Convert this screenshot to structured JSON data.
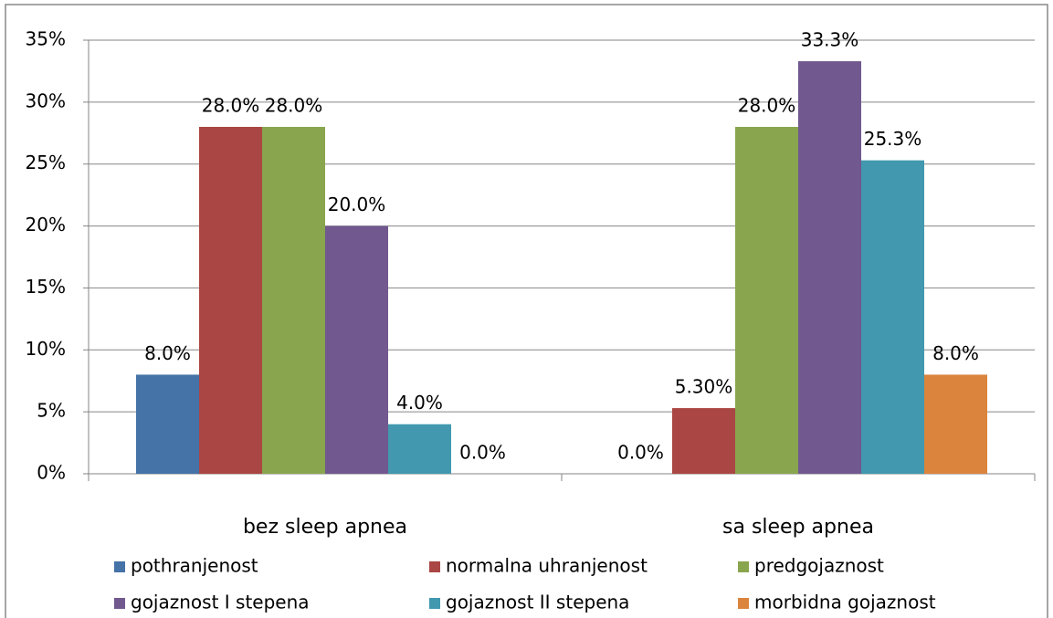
{
  "chart_data": {
    "type": "bar",
    "categories": [
      "bez sleep apnea",
      "sa sleep apnea"
    ],
    "series": [
      {
        "name": "pothranjenost",
        "color": "#4572a7",
        "values": [
          8,
          0
        ],
        "value_labels": [
          "8.0%",
          "0.0%"
        ]
      },
      {
        "name": "normalna uhranjenost",
        "color": "#aa4643",
        "values": [
          28,
          5.3
        ],
        "value_labels": [
          "28.0%",
          "5.30%"
        ]
      },
      {
        "name": "predgojaznost",
        "color": "#89a54e",
        "values": [
          28,
          28
        ],
        "value_labels": [
          "28.0%",
          "28.0%"
        ]
      },
      {
        "name": "gojaznost I stepena",
        "color": "#71588f",
        "values": [
          20,
          33.3
        ],
        "value_labels": [
          "20.0%",
          "33.3%"
        ]
      },
      {
        "name": "gojaznost II stepena",
        "color": "#4198af",
        "values": [
          4,
          25.3
        ],
        "value_labels": [
          "4.0%",
          "25.3%"
        ]
      },
      {
        "name": "morbidna gojaznost",
        "color": "#db843d",
        "values": [
          0,
          8
        ],
        "value_labels": [
          "0.0%",
          "8.0%"
        ]
      }
    ],
    "ylim": [
      0,
      35
    ],
    "yticks": [
      {
        "value": 0,
        "label": "0%"
      },
      {
        "value": 5,
        "label": "5%"
      },
      {
        "value": 10,
        "label": "10%"
      },
      {
        "value": 15,
        "label": "15%"
      },
      {
        "value": 20,
        "label": "20%"
      },
      {
        "value": 25,
        "label": "25%"
      },
      {
        "value": 30,
        "label": "30%"
      },
      {
        "value": 35,
        "label": "35%"
      }
    ],
    "grid": true,
    "legend": "bottom"
  }
}
